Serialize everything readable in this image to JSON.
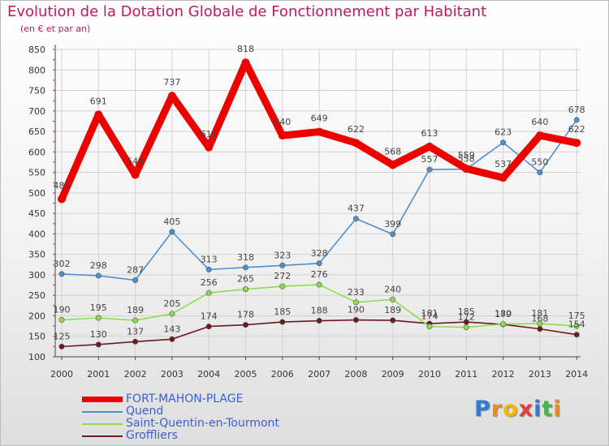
{
  "header": {
    "title": "Evolution de la Dotation Globale de Fonctionnement par Habitant",
    "subtitle": "(en € et par an)"
  },
  "chart_data": {
    "type": "line",
    "x": [
      "2000",
      "2001",
      "2002",
      "2003",
      "2004",
      "2005",
      "2006",
      "2007",
      "2008",
      "2009",
      "2010",
      "2011",
      "2012",
      "2013",
      "2014"
    ],
    "ylim": [
      100,
      850
    ],
    "yticks": [
      100,
      150,
      200,
      250,
      300,
      350,
      400,
      450,
      500,
      550,
      600,
      650,
      700,
      750,
      800,
      850
    ],
    "grid": true,
    "series": [
      {
        "name": "FORT-MAHON-PLAGE",
        "color": "#ee0000",
        "values": [
          485,
          691,
          544,
          737,
          611,
          818,
          640,
          649,
          622,
          568,
          613,
          559,
          537,
          640,
          622
        ]
      },
      {
        "name": "Quend",
        "color": "#4f8fcf",
        "values": [
          302,
          298,
          287,
          405,
          313,
          318,
          323,
          328,
          437,
          399,
          557,
          558,
          623,
          550,
          678
        ]
      },
      {
        "name": "Saint-Quentin-en-Tourmont",
        "color": "#8edc4e",
        "values": [
          190,
          195,
          189,
          205,
          256,
          265,
          272,
          276,
          233,
          240,
          174,
          172,
          180,
          181,
          175
        ]
      },
      {
        "name": "Groffliers",
        "color": "#6b1a22",
        "values": [
          125,
          130,
          137,
          143,
          174,
          178,
          185,
          188,
          190,
          189,
          181,
          185,
          179,
          168,
          154
        ]
      }
    ]
  },
  "logo": {
    "letters": [
      "P",
      "r",
      "o",
      "x",
      "i",
      "t",
      "i"
    ],
    "colors": [
      "#2f7bd6",
      "#f08c1c",
      "#f5b800",
      "#e33d3d",
      "#2f7bd6",
      "#4caf50",
      "#f08c1c"
    ]
  }
}
